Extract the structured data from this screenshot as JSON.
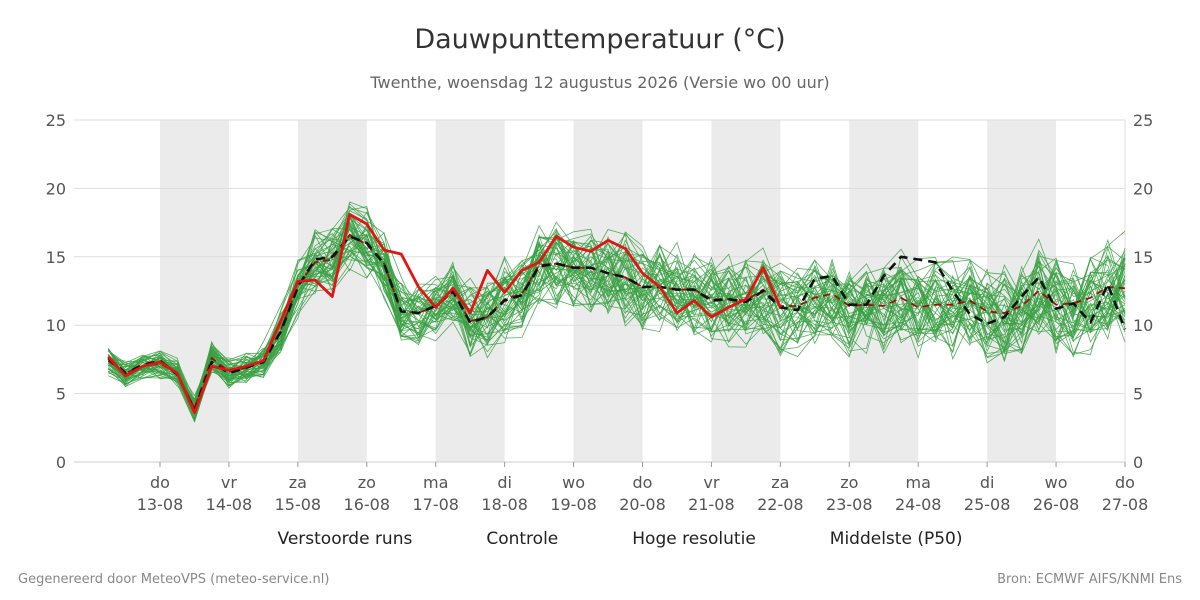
{
  "title": "Dauwpunttemperatuur (°C)",
  "subtitle": "Twenthe, woensdag 12 augustus 2026 (Versie wo 00 uur)",
  "footer": {
    "left": "Gegenereerd door MeteoVPS (meteo-service.nl)",
    "right": "Bron: ECMWF AIFS/KNMI Ens"
  },
  "colors": {
    "ensemble": "#3aa043",
    "control": "#111111",
    "hires": "#e01515",
    "median": "#9b1010",
    "weekend_band": "#ebebeb",
    "grid": "#dddddd"
  },
  "legend": [
    {
      "label": "Verstoorde runs",
      "key": "ensemble"
    },
    {
      "label": "Controle",
      "key": "control"
    },
    {
      "label": "Hoge resolutie",
      "key": "hires"
    },
    {
      "label": "Middelste (P50)",
      "key": "median"
    }
  ],
  "chart_data": {
    "type": "line",
    "xlabel": "",
    "ylabel": "",
    "ylim": [
      0,
      25
    ],
    "yticks": [
      0,
      5,
      10,
      15,
      20,
      25
    ],
    "grid": true,
    "x_axis": {
      "start": "2026-08-12 06:00",
      "end": "2026-08-27 00:00",
      "step_hours": 6,
      "day_ticks": [
        {
          "day": "do",
          "date": "13-08"
        },
        {
          "day": "vr",
          "date": "14-08"
        },
        {
          "day": "za",
          "date": "15-08"
        },
        {
          "day": "zo",
          "date": "16-08"
        },
        {
          "day": "ma",
          "date": "17-08"
        },
        {
          "day": "di",
          "date": "18-08"
        },
        {
          "day": "wo",
          "date": "19-08"
        },
        {
          "day": "do",
          "date": "20-08"
        },
        {
          "day": "vr",
          "date": "21-08"
        },
        {
          "day": "za",
          "date": "22-08"
        },
        {
          "day": "zo",
          "date": "23-08"
        },
        {
          "day": "ma",
          "date": "24-08"
        },
        {
          "day": "di",
          "date": "25-08"
        },
        {
          "day": "wo",
          "date": "26-08"
        },
        {
          "day": "do",
          "date": "27-08"
        }
      ],
      "shaded_days": [
        "13-08",
        "15-08",
        "17-08",
        "19-08",
        "21-08",
        "23-08",
        "25-08"
      ]
    },
    "legend_position": "bottom",
    "series": [
      {
        "name": "Controle",
        "style": "dashed",
        "values": [
          7.6,
          6.5,
          7.1,
          7.4,
          6.4,
          3.8,
          7.3,
          6.5,
          6.9,
          7.3,
          9.5,
          12.8,
          14.8,
          15.0,
          16.5,
          16.0,
          14.5,
          11.0,
          10.9,
          11.4,
          12.5,
          10.2,
          10.6,
          11.8,
          12.2,
          14.3,
          14.5,
          14.2,
          14.2,
          13.8,
          13.5,
          12.8,
          12.8,
          12.6,
          12.6,
          11.8,
          11.9,
          11.7,
          12.5,
          11.3,
          11.1,
          13.4,
          13.6,
          11.5,
          11.5,
          13.6,
          15.0,
          14.8,
          14.6,
          12.5,
          10.8,
          10.1,
          10.6,
          12.1,
          13.5,
          11.2,
          11.6,
          10.2,
          13.0,
          9.7
        ]
      },
      {
        "name": "Hoge resolutie",
        "style": "solid",
        "values": [
          7.7,
          6.3,
          7.0,
          7.3,
          6.5,
          3.6,
          7.0,
          6.7,
          7.0,
          7.4,
          10.3,
          13.2,
          13.3,
          12.1,
          18.1,
          17.4,
          15.5,
          15.2,
          12.8,
          11.3,
          12.7,
          10.9,
          14.0,
          12.4,
          14.0,
          14.6,
          16.5,
          15.7,
          15.4,
          16.2,
          15.6,
          13.8,
          12.8,
          10.9,
          11.8,
          10.6,
          11.3,
          11.9,
          14.2,
          11.3
        ]
      },
      {
        "name": "Middelste (P50)",
        "style": "dashed",
        "values": [
          7.4,
          6.5,
          7.0,
          7.2,
          6.5,
          3.9,
          7.6,
          6.6,
          6.9,
          7.4,
          9.6,
          12.9,
          14.6,
          14.8,
          16.6,
          15.9,
          14.5,
          11.0,
          10.9,
          11.4,
          12.4,
          10.3,
          10.6,
          11.9,
          12.3,
          14.4,
          14.5,
          14.2,
          14.2,
          13.8,
          13.5,
          12.8,
          12.8,
          12.6,
          12.6,
          11.9,
          11.9,
          11.8,
          12.6,
          11.4,
          11.4,
          12.0,
          12.3,
          11.4,
          11.5,
          11.4,
          12.0,
          11.3,
          11.5,
          11.5,
          11.8,
          11.0,
          10.9,
          11.4,
          12.5,
          11.5,
          11.6,
          12.0,
          12.8,
          12.7
        ]
      }
    ],
    "ensemble": {
      "name": "Verstoorde runs",
      "member_count": 50,
      "spread": [
        0.8,
        0.8,
        0.8,
        0.8,
        0.8,
        0.8,
        0.9,
        0.9,
        0.9,
        1.0,
        1.5,
        1.8,
        1.8,
        2.0,
        2.1,
        2.0,
        2.0,
        1.8,
        1.8,
        1.8,
        2.0,
        2.2,
        2.3,
        2.3,
        2.4,
        2.4,
        2.5,
        2.5,
        2.5,
        2.5,
        2.5,
        2.5,
        2.5,
        2.5,
        2.5,
        2.5,
        2.5,
        2.5,
        2.6,
        2.6,
        2.6,
        2.6,
        2.6,
        2.7,
        2.7,
        2.7,
        2.7,
        2.7,
        2.8,
        2.8,
        2.8,
        2.8,
        2.8,
        2.8,
        2.9,
        2.9,
        2.9,
        2.9,
        3.0,
        3.0
      ]
    }
  }
}
